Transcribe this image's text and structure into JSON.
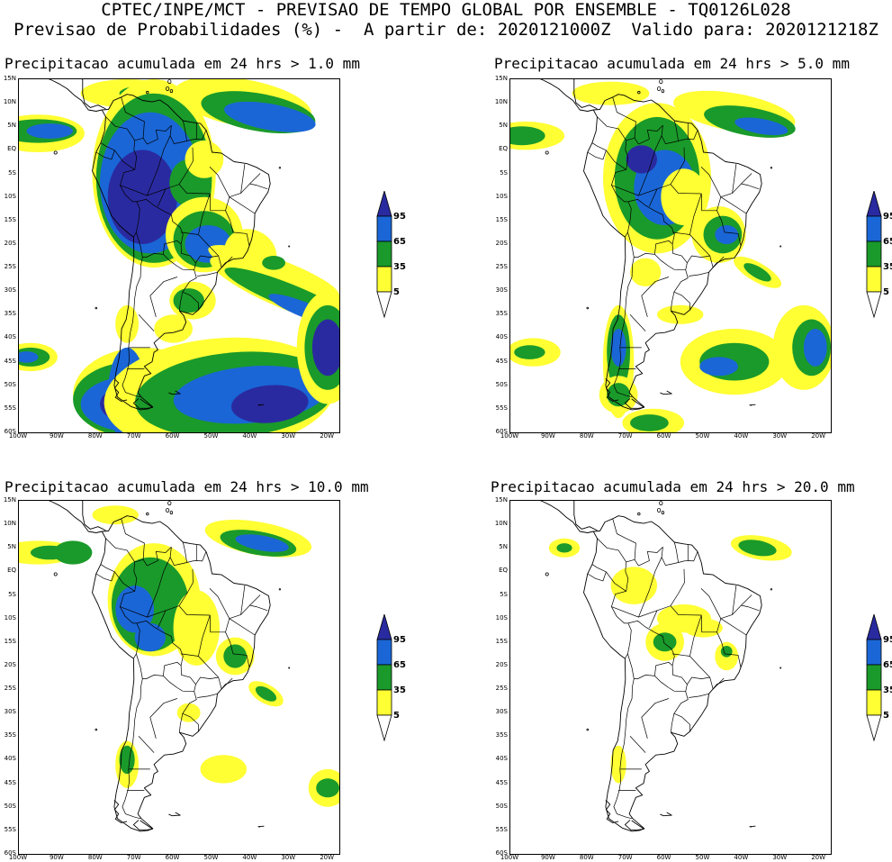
{
  "header": {
    "line1": "CPTEC/INPE/MCT - PREVISAO DE TEMPO GLOBAL POR ENSEMBLE - TQ0126L028",
    "line2": "Previsao de Probabilidades (%) -  A partir de: 2020121000Z  Valido para: 2020121218Z"
  },
  "axes": {
    "lat_labels": [
      "15N",
      "10N",
      "5N",
      "EQ",
      "5S",
      "10S",
      "15S",
      "20S",
      "25S",
      "30S",
      "35S",
      "40S",
      "45S",
      "50S",
      "55S",
      "60S"
    ],
    "lon_labels": [
      "100W",
      "90W",
      "80W",
      "70W",
      "60W",
      "50W",
      "40W",
      "30W",
      "20W"
    ]
  },
  "legend": {
    "labels": [
      "95",
      "65",
      "35",
      "5"
    ],
    "colors": [
      "#2a2aa0",
      "#1a66d6",
      "#1a9a2a",
      "#ffff33"
    ]
  },
  "colors": {
    "yellow": "#ffff33",
    "green": "#1a9a2a",
    "blue": "#1a66d6",
    "navy": "#2a2aa0"
  },
  "panels": [
    {
      "title": "Precipitacao acumulada em 24 hrs > 1.0 mm"
    },
    {
      "title": "Precipitacao acumulada em 24 hrs > 5.0 mm"
    },
    {
      "title": "Precipitacao acumulada em 24 hrs > 10.0 mm"
    },
    {
      "title": "Precipitacao acumulada em 24 hrs > 20.0 mm"
    }
  ]
}
